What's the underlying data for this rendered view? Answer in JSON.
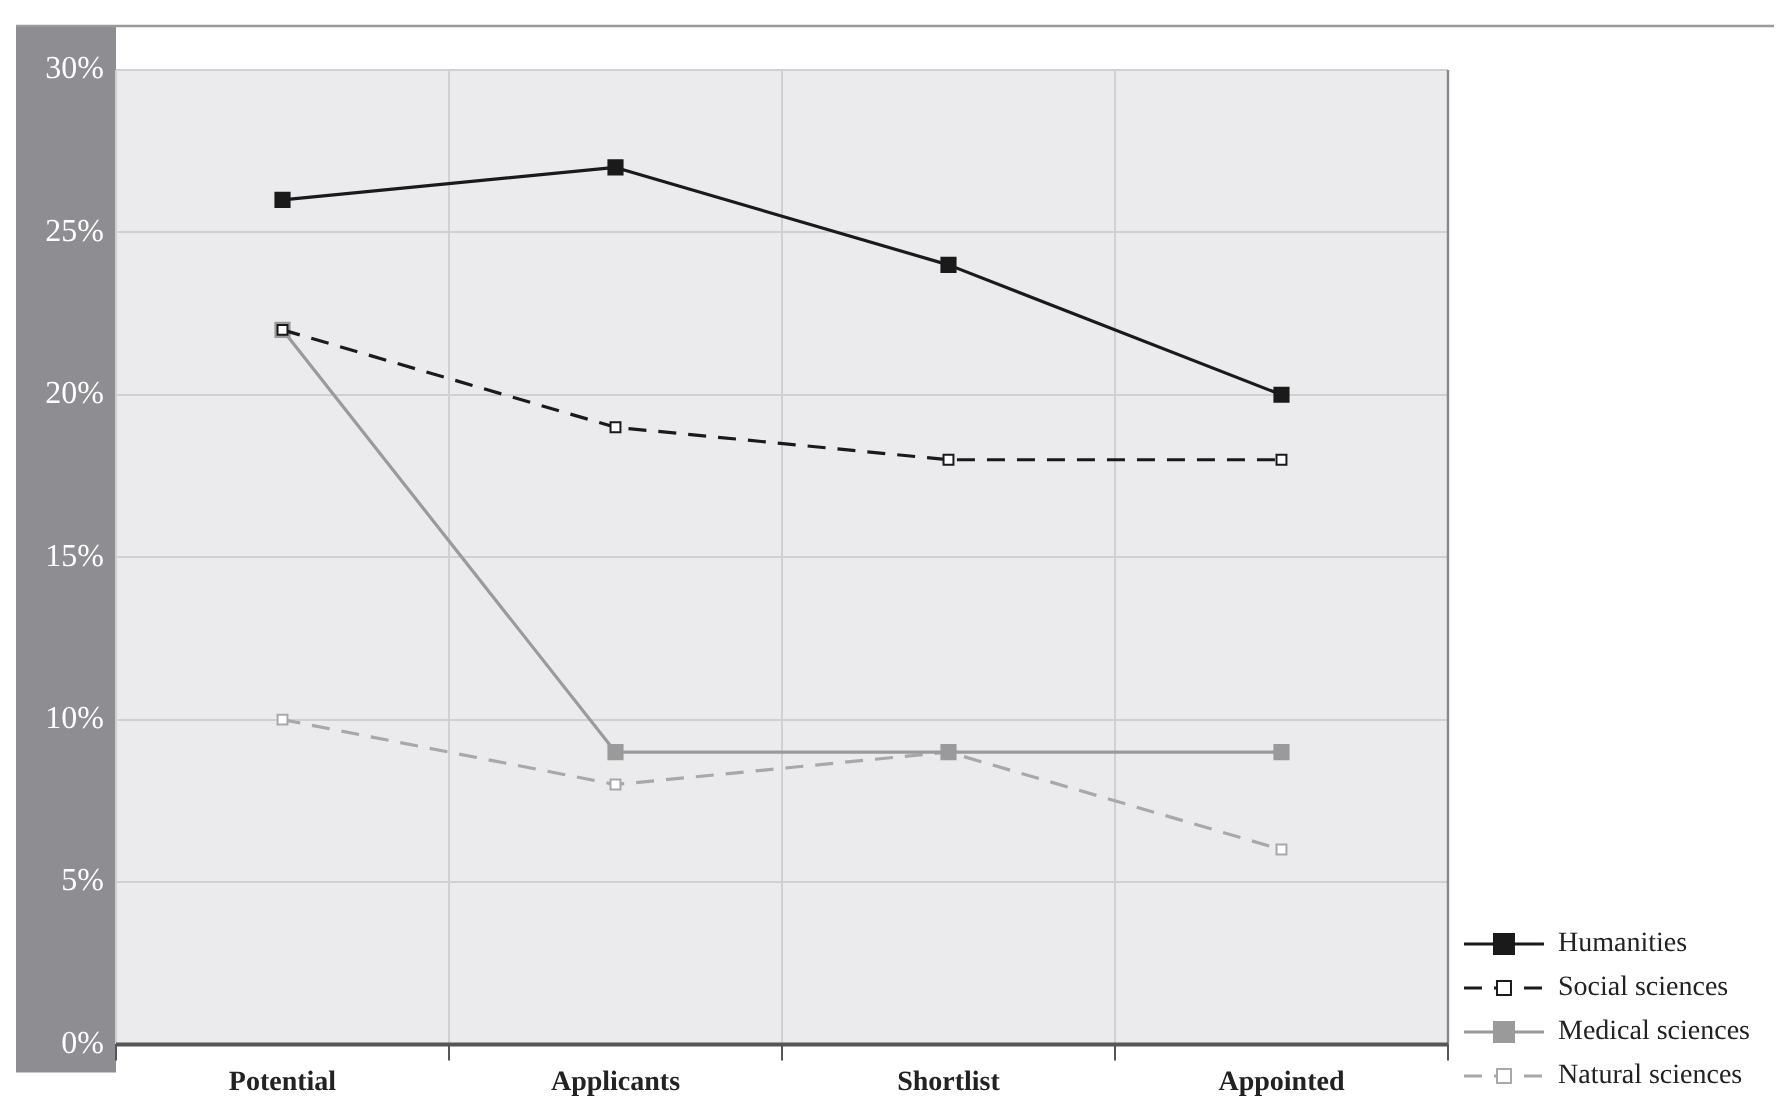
{
  "chart_data": {
    "type": "line",
    "categories": [
      "Potential",
      "Applicants",
      "Shortlist",
      "Appointed"
    ],
    "series": [
      {
        "name": "Humanities",
        "color": "#1a1a1a",
        "values": [
          26,
          27,
          24,
          20
        ],
        "line_style": "solid"
      },
      {
        "name": "Social sciences",
        "color": "#1a1a1a",
        "values": [
          22,
          19,
          18,
          18
        ],
        "line_style": "dashed"
      },
      {
        "name": "Medical sciences",
        "color": "#9a9a9a",
        "values": [
          22,
          9,
          9,
          9
        ],
        "line_style": "solid"
      },
      {
        "name": "Natural sciences",
        "color": "#a8a8a8",
        "values": [
          10,
          8,
          9,
          6
        ],
        "line_style": "dashed"
      }
    ],
    "ylim": [
      0,
      30
    ],
    "yticks": [
      {
        "value": 0,
        "label": "0%"
      },
      {
        "value": 5,
        "label": "5%"
      },
      {
        "value": 10,
        "label": "10%"
      },
      {
        "value": 15,
        "label": "15%"
      },
      {
        "value": 20,
        "label": "20%"
      },
      {
        "value": 25,
        "label": "25%"
      },
      {
        "value": 30,
        "label": "30%"
      }
    ],
    "grid": true,
    "legend": "bottom right",
    "marker": "square"
  }
}
